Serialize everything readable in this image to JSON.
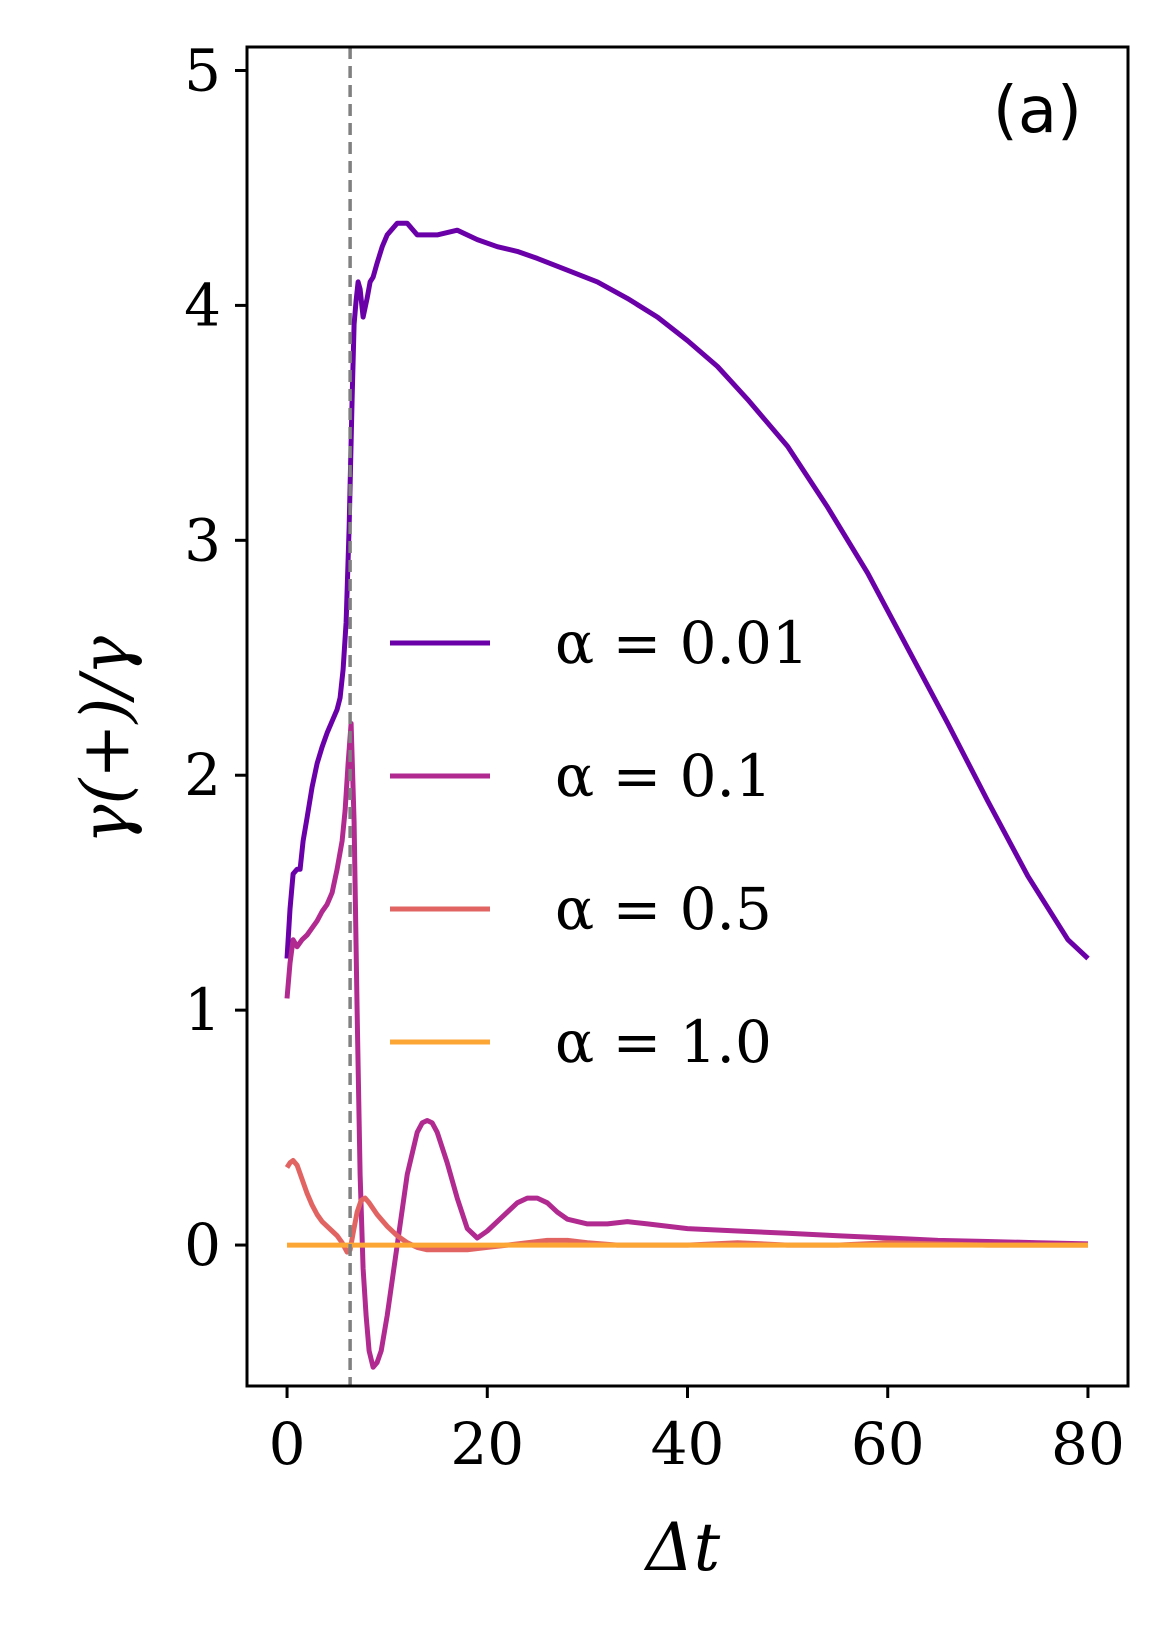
{
  "chart_data": {
    "type": "line",
    "annotation": "(a)",
    "xlabel": "Δt",
    "ylabel": "γ(+)/γ",
    "xlim": [
      -4,
      84
    ],
    "ylim": [
      -0.6,
      5.1
    ],
    "xticks": [
      0,
      20,
      40,
      60,
      80
    ],
    "yticks": [
      0,
      1,
      2,
      3,
      4,
      5
    ],
    "xtick_labels": [
      "0",
      "20",
      "40",
      "60",
      "80"
    ],
    "ytick_labels": [
      "0",
      "1",
      "2",
      "3",
      "4",
      "5"
    ],
    "vline": {
      "x": 6.3,
      "style": "dashed",
      "color": "#808080"
    },
    "legend_position": "center-right",
    "grid": false,
    "series": [
      {
        "name": "α = 0.01",
        "color": "#6a00a8",
        "x": [
          0,
          0.3,
          0.6,
          1,
          1.3,
          1.6,
          2,
          2.5,
          3,
          3.5,
          4,
          4.5,
          5,
          5.3,
          5.6,
          5.9,
          6.2,
          6.5,
          6.7,
          6.9,
          7.1,
          7.3,
          7.6,
          8,
          8.3,
          8.6,
          9,
          9.5,
          10,
          11,
          12,
          13,
          14,
          15,
          17,
          19,
          21,
          23,
          25,
          28,
          31,
          34,
          37,
          40,
          43,
          46,
          50,
          54,
          58,
          62,
          66,
          70,
          74,
          78,
          80
        ],
        "y": [
          1.22,
          1.43,
          1.58,
          1.6,
          1.6,
          1.72,
          1.82,
          1.95,
          2.05,
          2.12,
          2.18,
          2.23,
          2.28,
          2.33,
          2.45,
          2.65,
          3.05,
          3.6,
          3.92,
          4.02,
          4.1,
          4.07,
          3.95,
          4.03,
          4.1,
          4.12,
          4.18,
          4.25,
          4.3,
          4.35,
          4.35,
          4.3,
          4.3,
          4.3,
          4.32,
          4.28,
          4.25,
          4.23,
          4.2,
          4.15,
          4.1,
          4.03,
          3.95,
          3.85,
          3.74,
          3.6,
          3.4,
          3.14,
          2.86,
          2.54,
          2.22,
          1.89,
          1.57,
          1.3,
          1.22
        ]
      },
      {
        "name": "α = 0.1",
        "color": "#b12a90",
        "x": [
          0,
          0.3,
          0.6,
          1,
          1.5,
          2,
          2.5,
          3,
          3.5,
          4,
          4.5,
          5,
          5.5,
          5.8,
          6.1,
          6.4,
          6.7,
          7,
          7.3,
          7.6,
          7.9,
          8.2,
          8.6,
          9,
          9.4,
          10,
          11,
          12,
          13,
          13.5,
          14,
          14.5,
          15,
          16,
          17,
          18,
          19,
          20,
          21,
          22,
          23,
          24,
          25,
          26,
          27,
          28,
          30,
          32,
          34,
          36,
          40,
          45,
          50,
          55,
          60,
          65,
          70,
          75,
          80
        ],
        "y": [
          1.05,
          1.2,
          1.3,
          1.27,
          1.3,
          1.32,
          1.35,
          1.38,
          1.42,
          1.45,
          1.5,
          1.6,
          1.72,
          1.85,
          2.05,
          2.22,
          1.8,
          1.0,
          0.3,
          -0.1,
          -0.3,
          -0.45,
          -0.52,
          -0.5,
          -0.45,
          -0.3,
          0.0,
          0.3,
          0.48,
          0.52,
          0.53,
          0.52,
          0.48,
          0.35,
          0.2,
          0.07,
          0.03,
          0.06,
          0.1,
          0.14,
          0.18,
          0.2,
          0.2,
          0.18,
          0.14,
          0.11,
          0.09,
          0.09,
          0.1,
          0.09,
          0.07,
          0.06,
          0.05,
          0.04,
          0.03,
          0.02,
          0.015,
          0.01,
          0.005
        ]
      },
      {
        "name": "α = 0.5",
        "color": "#e16462",
        "x": [
          0,
          0.3,
          0.6,
          1,
          1.5,
          2,
          2.5,
          3,
          3.5,
          4,
          4.5,
          5,
          5.5,
          6,
          6.3,
          6.6,
          7,
          7.4,
          7.8,
          8.2,
          9,
          10,
          11,
          12,
          13,
          14,
          16,
          18,
          20,
          22,
          24,
          26,
          28,
          30,
          33,
          36,
          40,
          45,
          50,
          55,
          60,
          70,
          80
        ],
        "y": [
          0.33,
          0.35,
          0.36,
          0.34,
          0.28,
          0.22,
          0.17,
          0.13,
          0.1,
          0.08,
          0.06,
          0.04,
          0.01,
          -0.03,
          -0.02,
          0.05,
          0.14,
          0.19,
          0.2,
          0.18,
          0.13,
          0.08,
          0.04,
          0.01,
          -0.01,
          -0.02,
          -0.02,
          -0.02,
          -0.01,
          0.0,
          0.01,
          0.02,
          0.02,
          0.01,
          0.0,
          0.0,
          0.0,
          0.01,
          0.0,
          0.0,
          0.01,
          0.0,
          0.0
        ]
      },
      {
        "name": "α = 1.0",
        "color": "#fca636",
        "x": [
          0,
          80
        ],
        "y": [
          0,
          0
        ]
      }
    ]
  }
}
